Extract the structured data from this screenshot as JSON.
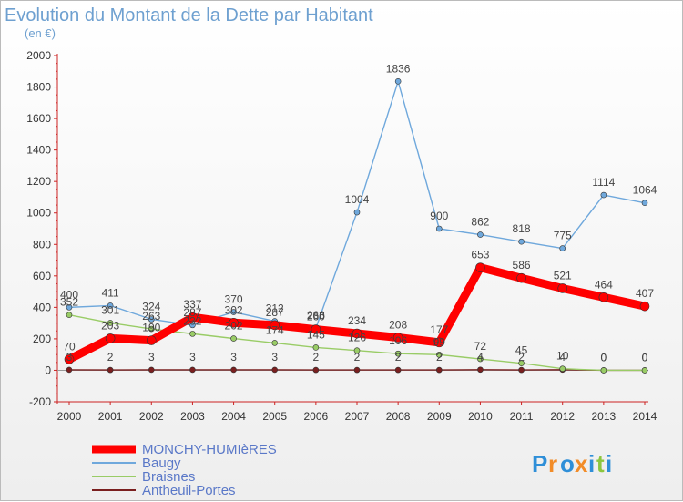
{
  "chart_data": {
    "type": "line",
    "title": "Evolution du Montant de la Dette par Habitant",
    "subtitle": "(en €)",
    "x": [
      "2000",
      "2001",
      "2002",
      "2003",
      "2004",
      "2005",
      "2006",
      "2007",
      "2008",
      "2009",
      "2010",
      "2011",
      "2012",
      "2013",
      "2014"
    ],
    "ylim": [
      -200,
      2000
    ],
    "yticks": [
      -200,
      0,
      200,
      400,
      600,
      800,
      1000,
      1200,
      1400,
      1600,
      1800,
      2000
    ],
    "grid": false,
    "legend_position": "bottom-left",
    "series": [
      {
        "name": "MONCHY-HUMIèRES",
        "color": "#ff0000",
        "values": [
          70,
          203,
          190,
          337,
          302,
          287,
          260,
          234,
          208,
          177,
          653,
          586,
          521,
          464,
          407
        ]
      },
      {
        "name": "Baugy",
        "color": "#6fa8dc",
        "values": [
          400,
          411,
          324,
          287,
          370,
          312,
          268,
          1004,
          1836,
          900,
          862,
          818,
          775,
          1114,
          1064
        ]
      },
      {
        "name": "Braisnes",
        "color": "#99cc66",
        "values": [
          352,
          301,
          263,
          232,
          202,
          174,
          145,
          126,
          106,
          99,
          72,
          45,
          10,
          0,
          0
        ]
      },
      {
        "name": "Antheuil-Portes",
        "color": "#7a1f1f",
        "values": [
          3,
          2,
          3,
          3,
          3,
          3,
          2,
          2,
          2,
          2,
          4,
          2,
          4,
          0,
          0
        ]
      }
    ]
  },
  "brand": {
    "text": "Proxiti",
    "letters": [
      "P",
      "r",
      "o",
      "x",
      "i",
      "t",
      "i"
    ],
    "colors": [
      "#2f8fd8",
      "#f28c28",
      "#2f8fd8",
      "#f28c28",
      "#2f8fd8",
      "#8cc63f",
      "#2f8fd8"
    ]
  }
}
